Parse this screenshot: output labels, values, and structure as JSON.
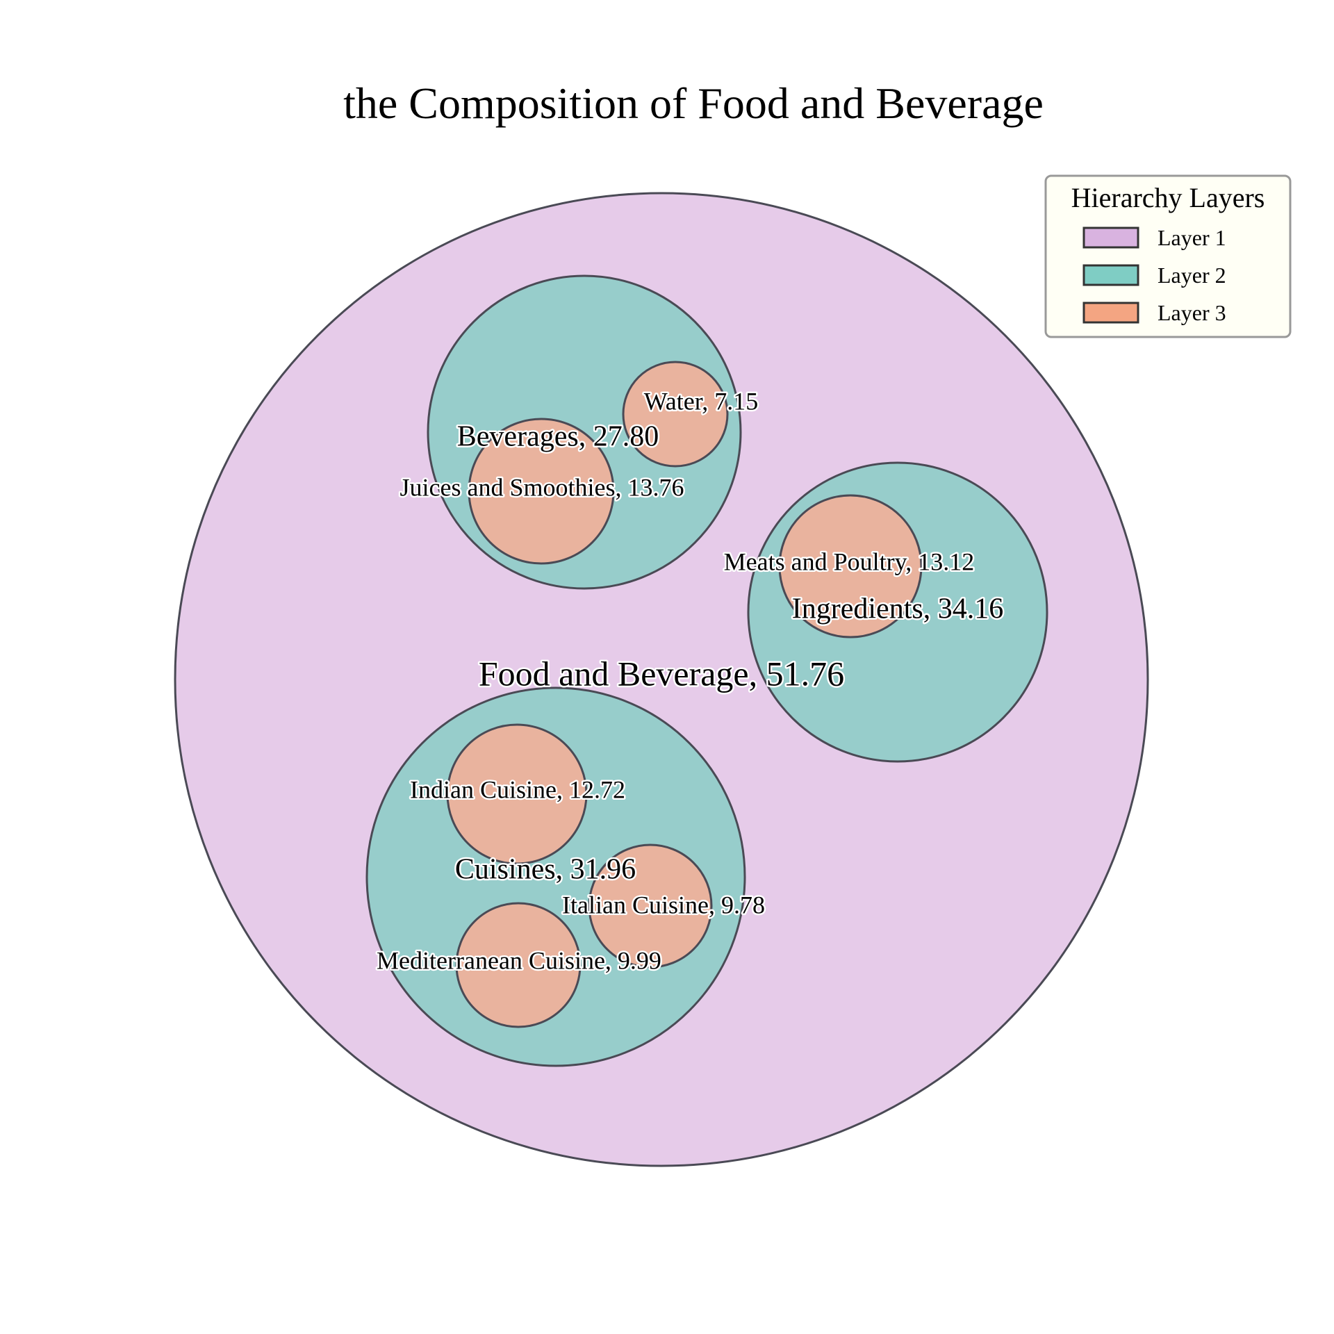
{
  "chart_data": {
    "type": "circle_packing",
    "title": "the Composition of Food and Beverage",
    "nodes": [
      {
        "name": "Food and Beverage",
        "value": 51.76,
        "layer": 1,
        "label": "Food and Beverage, 51.76"
      },
      {
        "name": "Beverages",
        "value": 27.8,
        "layer": 2,
        "parent": "Food and Beverage",
        "label": "Beverages, 27.80"
      },
      {
        "name": "Ingredients",
        "value": 34.16,
        "layer": 2,
        "parent": "Food and Beverage",
        "label": "Ingredients, 34.16"
      },
      {
        "name": "Cuisines",
        "value": 31.96,
        "layer": 2,
        "parent": "Food and Beverage",
        "label": "Cuisines, 31.96"
      },
      {
        "name": "Water",
        "value": 7.15,
        "layer": 3,
        "parent": "Beverages",
        "label": "Water, 7.15"
      },
      {
        "name": "Juices and Smoothies",
        "value": 13.76,
        "layer": 3,
        "parent": "Beverages",
        "label": "Juices and Smoothies, 13.76"
      },
      {
        "name": "Meats and Poultry",
        "value": 13.12,
        "layer": 3,
        "parent": "Ingredients",
        "label": "Meats and Poultry, 13.12"
      },
      {
        "name": "Indian Cuisine",
        "value": 12.72,
        "layer": 3,
        "parent": "Cuisines",
        "label": "Indian Cuisine, 12.72"
      },
      {
        "name": "Italian Cuisine",
        "value": 9.78,
        "layer": 3,
        "parent": "Cuisines",
        "label": "Italian Cuisine, 9.78"
      },
      {
        "name": "Mediterranean Cuisine",
        "value": 9.99,
        "layer": 3,
        "parent": "Cuisines",
        "label": "Mediterranean Cuisine, 9.99"
      }
    ],
    "legend": {
      "title": "Hierarchy Layers",
      "placement": "top-right",
      "entries": [
        {
          "label": "Layer 1",
          "color": "#d9b3e0"
        },
        {
          "label": "Layer 2",
          "color": "#7fcdc4"
        },
        {
          "label": "Layer 3",
          "color": "#f4a582"
        }
      ]
    },
    "colors": {
      "layer1": "#e6cbe9",
      "layer2": "#97cdcb",
      "layer3": "#e9b39e",
      "edge": "#4a4a55",
      "legend_bg": "#fffff5"
    }
  }
}
